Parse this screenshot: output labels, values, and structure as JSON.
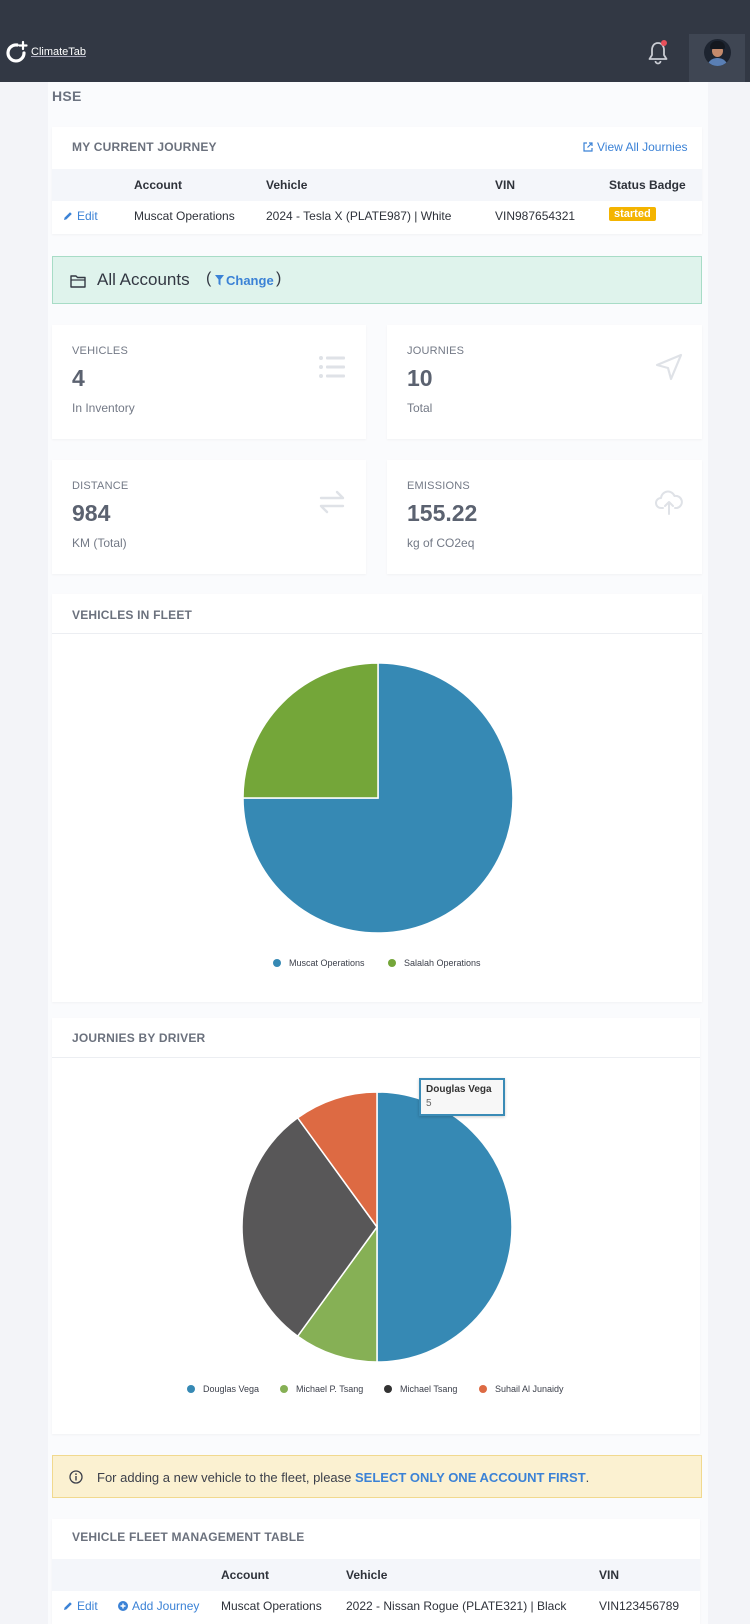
{
  "header": {
    "brand": "ClimateTab"
  },
  "page": {
    "title": "HSE"
  },
  "current_journey": {
    "title": "MY CURRENT JOURNEY",
    "view_all": "View All Journies",
    "columns": [
      "Account",
      "Vehicle",
      "VIN",
      "Status Badge"
    ],
    "row": {
      "action": "Edit",
      "account": "Muscat Operations",
      "vehicle": "2024 - Tesla X (PLATE987) | White",
      "vin": "VIN987654321",
      "status": "started"
    }
  },
  "accounts": {
    "label": "All Accounts",
    "open": "(",
    "change": "Change",
    "close": ")"
  },
  "stats": [
    {
      "label": "VEHICLES",
      "value": "4",
      "sub": "In Inventory",
      "icon": "list-icon"
    },
    {
      "label": "JOURNIES",
      "value": "10",
      "sub": "Total",
      "icon": "navigation-arrow-icon"
    },
    {
      "label": "DISTANCE",
      "value": "984",
      "sub": "KM (Total)",
      "icon": "exchange-arrows-icon"
    },
    {
      "label": "EMISSIONS",
      "value": "155.22",
      "sub": "kg of CO2eq",
      "icon": "cloud-upload-icon"
    }
  ],
  "chart_data": [
    {
      "type": "pie",
      "title": "VEHICLES IN FLEET",
      "categories": [
        "Muscat Operations",
        "Salalah Operations"
      ],
      "values": [
        3,
        1
      ],
      "colors": [
        "#3689b4",
        "#74a639"
      ]
    },
    {
      "type": "pie",
      "title": "JOURNIES BY DRIVER",
      "categories": [
        "Douglas Vega",
        "Michael P. Tsang",
        "Michael Tsang",
        "Suhail Al Junaidy"
      ],
      "values": [
        5,
        1,
        3,
        1
      ],
      "colors": [
        "#3689b4",
        "#86b055",
        "#585758",
        "#dd6a43"
      ],
      "tooltip": {
        "name": "Douglas Vega",
        "value": "5"
      }
    }
  ],
  "alert": {
    "text": "For adding a new vehicle to the fleet, please ",
    "emphasis": "SELECT ONLY ONE ACCOUNT FIRST",
    "end": "."
  },
  "fleet_table": {
    "title": "VEHICLE FLEET MANAGEMENT TABLE",
    "columns": [
      "Account",
      "Vehicle",
      "VIN"
    ],
    "rows": [
      {
        "edit": "Edit",
        "add_journey": "Add Journey",
        "account": "Muscat Operations",
        "vehicle": "2022 - Nissan Rogue (PLATE321) | Black",
        "vin": "VIN123456789"
      }
    ]
  }
}
